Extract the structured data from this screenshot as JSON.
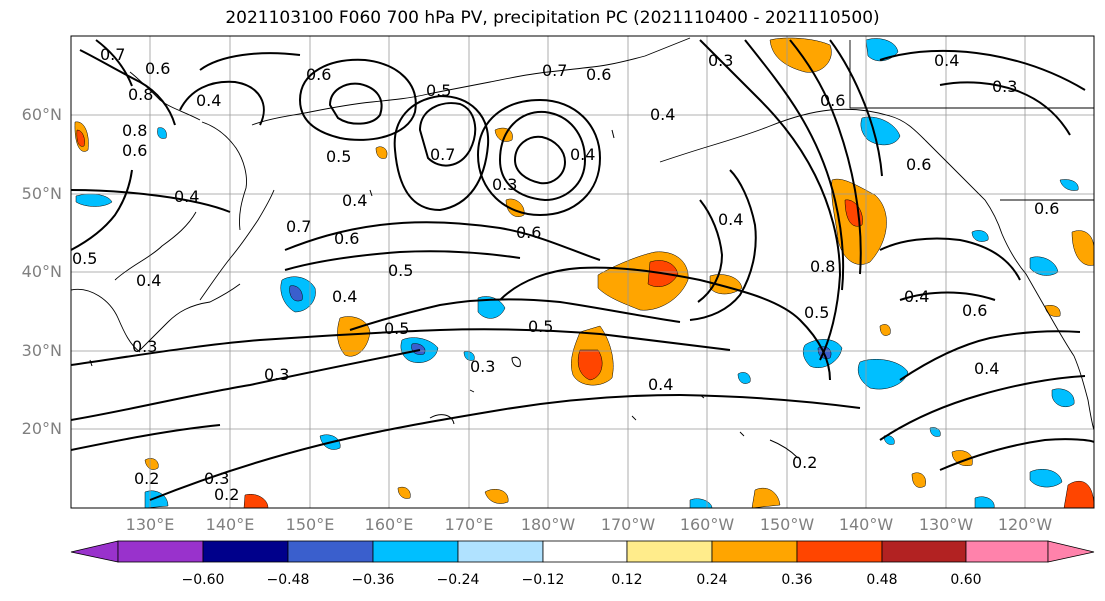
{
  "title": "2021103100 F060 700 hPa PV, precipitation PC (2021110400 - 2021110500)",
  "lat_labels": [
    "60°N",
    "50°N",
    "40°N",
    "30°N",
    "20°N"
  ],
  "lon_labels": [
    "130°E",
    "140°E",
    "150°E",
    "160°E",
    "170°E",
    "180°W",
    "170°W",
    "160°W",
    "150°W",
    "140°W",
    "130°W",
    "120°W"
  ],
  "colorbar": {
    "tick_labels": [
      "−0.60",
      "−0.48",
      "−0.36",
      "−0.24",
      "−0.12",
      "0.12",
      "0.24",
      "0.36",
      "0.48",
      "0.60"
    ],
    "colors": [
      "#9932cc",
      "#00008b",
      "#3a5fcd",
      "#00bfff",
      "#b0e2ff",
      "#ffffff",
      "#ffec8b",
      "#ffa500",
      "#ff4500",
      "#b22222",
      "#ff82ab"
    ]
  },
  "contour_labels": [
    "0.7",
    "0.6",
    "0.8",
    "0.8",
    "0.6",
    "0.4",
    "0.6",
    "0.5",
    "0.7",
    "0.7",
    "0.6",
    "0.5",
    "0.4",
    "0.3",
    "0.7",
    "0.4",
    "0.4",
    "0.3",
    "0.6",
    "0.4",
    "0.4",
    "0.5",
    "0.5",
    "0.5",
    "0.4",
    "0.5",
    "0.3",
    "0.3",
    "0.4",
    "0.4",
    "0.8",
    "0.4",
    "0.6",
    "0.6",
    "0.5",
    "0.6",
    "0.4",
    "0.2",
    "0.3",
    "0.2",
    "0.2",
    "0.3",
    "0.6",
    "0.6",
    "0.3",
    "0.4"
  ]
}
